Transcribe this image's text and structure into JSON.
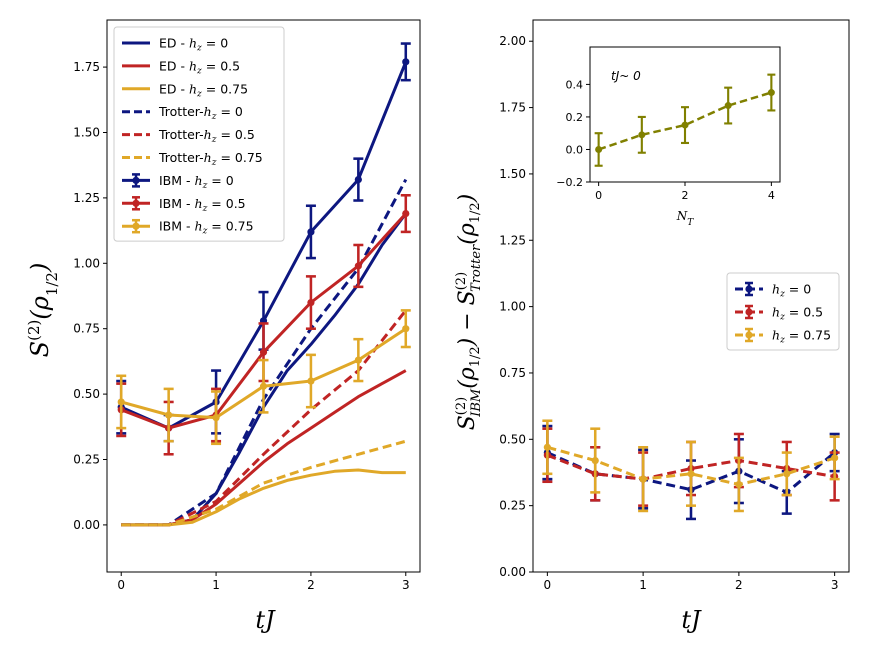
{
  "chart_data": [
    {
      "type": "line",
      "panel": "left",
      "xlabel": "tJ",
      "ylabel": "S(2)(ρ1/2)",
      "xlim": [
        -0.15,
        3.15
      ],
      "ylim": [
        -0.18,
        1.93
      ],
      "xticks": [
        0,
        1,
        2,
        3
      ],
      "xtick_labels": [
        "0",
        "1",
        "2",
        "3"
      ],
      "yticks": [
        0,
        0.25,
        0.5,
        0.75,
        1.0,
        1.25,
        1.5,
        1.75
      ],
      "ytick_labels": [
        "0.00",
        "0.25",
        "0.50",
        "0.75",
        "1.00",
        "1.25",
        "1.50",
        "1.75"
      ],
      "legend_position": "top-left",
      "series": [
        {
          "name": "ED - hz = 0",
          "legend_label": "ED - ",
          "legend_value": " = 0",
          "color": "#0d1780",
          "style": "solid",
          "x": [
            0,
            0.25,
            0.5,
            0.75,
            1.0,
            1.25,
            1.5,
            1.75,
            2.0,
            2.25,
            2.5,
            2.75,
            3.0
          ],
          "y": [
            0,
            0,
            0,
            0.02,
            0.12,
            0.28,
            0.45,
            0.59,
            0.69,
            0.8,
            0.92,
            1.07,
            1.19
          ]
        },
        {
          "name": "ED - hz = 0.5",
          "legend_label": "ED - ",
          "legend_value": " = 0.5",
          "color": "#c02424",
          "style": "solid",
          "x": [
            0,
            0.25,
            0.5,
            0.75,
            1.0,
            1.25,
            1.5,
            1.75,
            2.0,
            2.25,
            2.5,
            2.75,
            3.0
          ],
          "y": [
            0,
            0,
            0,
            0.02,
            0.08,
            0.16,
            0.24,
            0.31,
            0.37,
            0.43,
            0.49,
            0.54,
            0.59
          ]
        },
        {
          "name": "ED - hz = 0.75",
          "legend_label": "ED - ",
          "legend_value": " = 0.75",
          "color": "#e0a828",
          "style": "solid",
          "x": [
            0,
            0.25,
            0.5,
            0.75,
            1.0,
            1.25,
            1.5,
            1.75,
            2.0,
            2.25,
            2.5,
            2.75,
            3.0
          ],
          "y": [
            0,
            0,
            0,
            0.01,
            0.05,
            0.1,
            0.14,
            0.17,
            0.19,
            0.205,
            0.21,
            0.2,
            0.2
          ]
        },
        {
          "name": "Trotter-hz = 0",
          "legend_label": "Trotter-",
          "legend_value": " = 0",
          "color": "#0d1780",
          "style": "dashed",
          "x": [
            0,
            0.5,
            1.0,
            1.5,
            2.0,
            2.5,
            3.0
          ],
          "y": [
            0,
            0,
            0.12,
            0.48,
            0.75,
            0.98,
            1.32
          ]
        },
        {
          "name": "Trotter-hz = 0.5",
          "legend_label": "Trotter-",
          "legend_value": " = 0.5",
          "color": "#c02424",
          "style": "dashed",
          "x": [
            0,
            0.5,
            1.0,
            1.5,
            2.0,
            2.5,
            3.0
          ],
          "y": [
            0,
            0,
            0.09,
            0.27,
            0.44,
            0.59,
            0.82
          ]
        },
        {
          "name": "Trotter-hz = 0.75",
          "legend_label": "Trotter-",
          "legend_value": " = 0.75",
          "color": "#e0a828",
          "style": "dashed",
          "x": [
            0,
            0.5,
            1.0,
            1.5,
            2.0,
            2.5,
            3.0
          ],
          "y": [
            0,
            0,
            0.06,
            0.16,
            0.22,
            0.27,
            0.32
          ]
        },
        {
          "name": "IBM - hz = 0",
          "legend_label": "IBM - ",
          "legend_value": " = 0",
          "color": "#0d1780",
          "style": "solid-marker",
          "x": [
            0,
            0.5,
            1.0,
            1.5,
            2.0,
            2.5,
            3.0
          ],
          "y": [
            0.45,
            0.37,
            0.47,
            0.78,
            1.12,
            1.32,
            1.77
          ],
          "err": [
            0.1,
            0.05,
            0.12,
            0.11,
            0.1,
            0.08,
            0.07
          ]
        },
        {
          "name": "IBM - hz = 0.5",
          "legend_label": "IBM - ",
          "legend_value": " = 0.5",
          "color": "#c02424",
          "style": "solid-marker",
          "x": [
            0,
            0.5,
            1.0,
            1.5,
            2.0,
            2.5,
            3.0
          ],
          "y": [
            0.44,
            0.37,
            0.42,
            0.66,
            0.85,
            0.99,
            1.19
          ],
          "err": [
            0.1,
            0.1,
            0.1,
            0.11,
            0.1,
            0.08,
            0.07
          ]
        },
        {
          "name": "IBM - hz = 0.75",
          "legend_label": "IBM - ",
          "legend_value": " = 0.75",
          "color": "#e0a828",
          "style": "solid-marker",
          "x": [
            0,
            0.5,
            1.0,
            1.5,
            2.0,
            2.5,
            3.0
          ],
          "y": [
            0.47,
            0.42,
            0.41,
            0.53,
            0.55,
            0.63,
            0.75
          ],
          "err": [
            0.1,
            0.1,
            0.1,
            0.1,
            0.1,
            0.08,
            0.07
          ]
        }
      ]
    },
    {
      "type": "line",
      "panel": "right",
      "xlabel": "tJ",
      "ylabel": "S(2)IBM(ρ1/2) − S(2)Trotter(ρ1/2)",
      "xlim": [
        -0.15,
        3.15
      ],
      "ylim": [
        0,
        2.08
      ],
      "xticks": [
        0,
        1,
        2,
        3
      ],
      "xtick_labels": [
        "0",
        "1",
        "2",
        "3"
      ],
      "yticks": [
        0,
        0.25,
        0.5,
        0.75,
        1.0,
        1.25,
        1.5,
        1.75,
        2.0
      ],
      "ytick_labels": [
        "0.00",
        "0.25",
        "0.50",
        "0.75",
        "1.00",
        "1.25",
        "1.50",
        "1.75",
        "2.00"
      ],
      "legend_position": "center-right",
      "series": [
        {
          "name": "hz = 0",
          "legend_value": " = 0",
          "color": "#0d1780",
          "style": "dashed-marker",
          "x": [
            0,
            0.5,
            1.0,
            1.5,
            2.0,
            2.5,
            3.0
          ],
          "y": [
            0.45,
            0.37,
            0.35,
            0.31,
            0.38,
            0.3,
            0.45
          ],
          "err": [
            0.1,
            0.1,
            0.11,
            0.11,
            0.12,
            0.08,
            0.07
          ]
        },
        {
          "name": "hz = 0.5",
          "legend_value": " = 0.5",
          "color": "#c02424",
          "style": "dashed-marker",
          "x": [
            0,
            0.5,
            1.0,
            1.5,
            2.0,
            2.5,
            3.0
          ],
          "y": [
            0.44,
            0.37,
            0.35,
            0.39,
            0.42,
            0.39,
            0.36
          ],
          "err": [
            0.1,
            0.1,
            0.1,
            0.1,
            0.1,
            0.1,
            0.09
          ]
        },
        {
          "name": "hz = 0.75",
          "legend_value": " = 0.75",
          "color": "#e0a828",
          "style": "dashed-marker",
          "x": [
            0,
            0.5,
            1.0,
            1.5,
            2.0,
            2.5,
            3.0
          ],
          "y": [
            0.47,
            0.42,
            0.35,
            0.37,
            0.33,
            0.37,
            0.43
          ],
          "err": [
            0.1,
            0.12,
            0.12,
            0.12,
            0.1,
            0.08,
            0.08
          ]
        }
      ]
    },
    {
      "type": "line",
      "panel": "inset",
      "annotation": "tJ~ 0",
      "xlabel": "NT",
      "xlim": [
        -0.2,
        4.2
      ],
      "ylim": [
        -0.2,
        0.63
      ],
      "xticks": [
        0,
        2,
        4
      ],
      "xtick_labels": [
        "0",
        "2",
        "4"
      ],
      "yticks": [
        -0.2,
        0,
        0.2,
        0.4
      ],
      "ytick_labels": [
        "−0.2",
        "0.0",
        "0.2",
        "0.4"
      ],
      "series": [
        {
          "name": "inset",
          "color": "#808000",
          "style": "dashed-marker",
          "x": [
            0,
            1,
            2,
            3,
            4
          ],
          "y": [
            0.0,
            0.09,
            0.15,
            0.27,
            0.35
          ],
          "err": [
            0.1,
            0.11,
            0.11,
            0.11,
            0.11
          ]
        }
      ]
    }
  ]
}
